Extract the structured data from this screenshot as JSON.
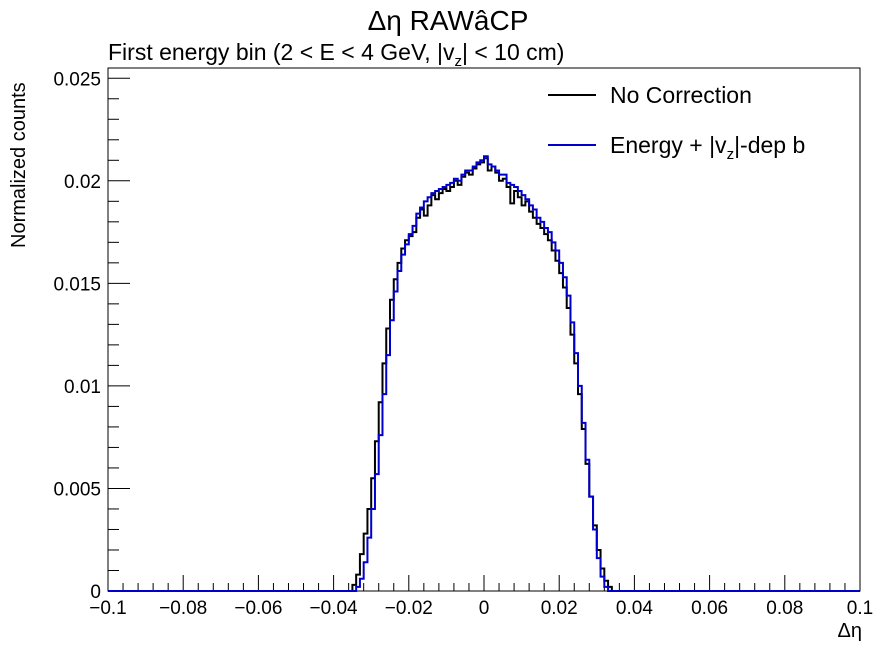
{
  "title": "Δη RAWâCP",
  "subtitle": {
    "prefix": "First energy bin (2 < E < 4 GeV, |v",
    "sub": "z",
    "suffix": "| < 10 cm)"
  },
  "legend": [
    {
      "label_prefix": "No Correction",
      "label_sub": "",
      "label_suffix": "",
      "color": "#000000"
    },
    {
      "label_prefix": "Energy + |v",
      "label_sub": "z",
      "label_suffix": "|-dep b",
      "color": "#0000cc"
    }
  ],
  "chart_data": {
    "type": "line",
    "style": "step-histogram",
    "xlabel": "Δη",
    "ylabel": "Normalized counts",
    "xlim": [
      -0.1,
      0.1
    ],
    "ylim": [
      0,
      0.0255
    ],
    "x_ticks": [
      "−0.1",
      "−0.08",
      "−0.06",
      "−0.04",
      "−0.02",
      "0",
      "0.02",
      "0.04",
      "0.06",
      "0.08",
      "0.1"
    ],
    "y_ticks": [
      "0",
      "0.005",
      "0.01",
      "0.015",
      "0.02",
      "0.025"
    ],
    "series": [
      {
        "name": "No Correction",
        "color": "#000000",
        "points": [
          [
            -0.1,
            0
          ],
          [
            -0.036,
            0
          ],
          [
            -0.035,
            0.0003
          ],
          [
            -0.034,
            0.0008
          ],
          [
            -0.033,
            0.0018
          ],
          [
            -0.032,
            0.0028
          ],
          [
            -0.031,
            0.004
          ],
          [
            -0.03,
            0.0055
          ],
          [
            -0.029,
            0.0073
          ],
          [
            -0.028,
            0.0092
          ],
          [
            -0.027,
            0.0111
          ],
          [
            -0.026,
            0.0128
          ],
          [
            -0.025,
            0.0142
          ],
          [
            -0.024,
            0.0152
          ],
          [
            -0.023,
            0.016
          ],
          [
            -0.022,
            0.0167
          ],
          [
            -0.021,
            0.0171
          ],
          [
            -0.02,
            0.0173
          ],
          [
            -0.019,
            0.0175
          ],
          [
            -0.018,
            0.0182
          ],
          [
            -0.017,
            0.0186
          ],
          [
            -0.016,
            0.0183
          ],
          [
            -0.015,
            0.0188
          ],
          [
            -0.014,
            0.0193
          ],
          [
            -0.013,
            0.0191
          ],
          [
            -0.012,
            0.0194
          ],
          [
            -0.011,
            0.0196
          ],
          [
            -0.01,
            0.0195
          ],
          [
            -0.009,
            0.0197
          ],
          [
            -0.008,
            0.02
          ],
          [
            -0.007,
            0.0198
          ],
          [
            -0.006,
            0.0202
          ],
          [
            -0.005,
            0.0204
          ],
          [
            -0.004,
            0.0203
          ],
          [
            -0.003,
            0.0206
          ],
          [
            -0.002,
            0.0208
          ],
          [
            -0.001,
            0.0209
          ],
          [
            0.0,
            0.0211
          ],
          [
            0.001,
            0.0205
          ],
          [
            0.002,
            0.0207
          ],
          [
            0.003,
            0.0204
          ],
          [
            0.004,
            0.02
          ],
          [
            0.005,
            0.0201
          ],
          [
            0.006,
            0.0197
          ],
          [
            0.007,
            0.0189
          ],
          [
            0.008,
            0.0195
          ],
          [
            0.009,
            0.0192
          ],
          [
            0.01,
            0.0188
          ],
          [
            0.011,
            0.019
          ],
          [
            0.012,
            0.0185
          ],
          [
            0.013,
            0.0182
          ],
          [
            0.014,
            0.0179
          ],
          [
            0.015,
            0.0177
          ],
          [
            0.016,
            0.0174
          ],
          [
            0.017,
            0.0171
          ],
          [
            0.018,
            0.0166
          ],
          [
            0.019,
            0.0161
          ],
          [
            0.02,
            0.0155
          ],
          [
            0.021,
            0.0148
          ],
          [
            0.022,
            0.0138
          ],
          [
            0.023,
            0.0125
          ],
          [
            0.024,
            0.0111
          ],
          [
            0.025,
            0.0096
          ],
          [
            0.026,
            0.0079
          ],
          [
            0.027,
            0.0062
          ],
          [
            0.028,
            0.0046
          ],
          [
            0.029,
            0.0032
          ],
          [
            0.03,
            0.002
          ],
          [
            0.031,
            0.0011
          ],
          [
            0.032,
            0.0005
          ],
          [
            0.033,
            0.0002
          ],
          [
            0.034,
            0
          ],
          [
            0.1,
            0
          ]
        ]
      },
      {
        "name": "Energy + |vz|-dep b",
        "color": "#0000cc",
        "points": [
          [
            -0.1,
            0
          ],
          [
            -0.035,
            0
          ],
          [
            -0.034,
            0.0002
          ],
          [
            -0.033,
            0.0006
          ],
          [
            -0.032,
            0.0014
          ],
          [
            -0.031,
            0.0026
          ],
          [
            -0.03,
            0.004
          ],
          [
            -0.029,
            0.0057
          ],
          [
            -0.028,
            0.0076
          ],
          [
            -0.027,
            0.0096
          ],
          [
            -0.026,
            0.0115
          ],
          [
            -0.025,
            0.0132
          ],
          [
            -0.024,
            0.0146
          ],
          [
            -0.023,
            0.0156
          ],
          [
            -0.022,
            0.0164
          ],
          [
            -0.021,
            0.0169
          ],
          [
            -0.02,
            0.0174
          ],
          [
            -0.019,
            0.0178
          ],
          [
            -0.018,
            0.0184
          ],
          [
            -0.017,
            0.0187
          ],
          [
            -0.016,
            0.019
          ],
          [
            -0.015,
            0.0192
          ],
          [
            -0.014,
            0.0194
          ],
          [
            -0.013,
            0.0195
          ],
          [
            -0.012,
            0.0196
          ],
          [
            -0.011,
            0.0197
          ],
          [
            -0.01,
            0.0198
          ],
          [
            -0.009,
            0.0199
          ],
          [
            -0.008,
            0.0201
          ],
          [
            -0.007,
            0.02
          ],
          [
            -0.006,
            0.0203
          ],
          [
            -0.005,
            0.0205
          ],
          [
            -0.004,
            0.0205
          ],
          [
            -0.003,
            0.0207
          ],
          [
            -0.002,
            0.0209
          ],
          [
            -0.001,
            0.021
          ],
          [
            0.0,
            0.0212
          ],
          [
            0.001,
            0.0208
          ],
          [
            0.002,
            0.0207
          ],
          [
            0.003,
            0.0205
          ],
          [
            0.004,
            0.0203
          ],
          [
            0.005,
            0.0203
          ],
          [
            0.006,
            0.0199
          ],
          [
            0.007,
            0.0198
          ],
          [
            0.008,
            0.0197
          ],
          [
            0.009,
            0.0195
          ],
          [
            0.01,
            0.0193
          ],
          [
            0.011,
            0.0191
          ],
          [
            0.012,
            0.0188
          ],
          [
            0.013,
            0.0186
          ],
          [
            0.014,
            0.0182
          ],
          [
            0.015,
            0.018
          ],
          [
            0.016,
            0.0177
          ],
          [
            0.017,
            0.0175
          ],
          [
            0.018,
            0.017
          ],
          [
            0.019,
            0.0166
          ],
          [
            0.02,
            0.016
          ],
          [
            0.021,
            0.0153
          ],
          [
            0.022,
            0.0144
          ],
          [
            0.023,
            0.0131
          ],
          [
            0.024,
            0.0116
          ],
          [
            0.025,
            0.01
          ],
          [
            0.026,
            0.0082
          ],
          [
            0.027,
            0.0064
          ],
          [
            0.028,
            0.0046
          ],
          [
            0.029,
            0.003
          ],
          [
            0.03,
            0.0016
          ],
          [
            0.031,
            0.0007
          ],
          [
            0.032,
            0.0002
          ],
          [
            0.033,
            0
          ],
          [
            0.1,
            0
          ]
        ]
      }
    ]
  }
}
